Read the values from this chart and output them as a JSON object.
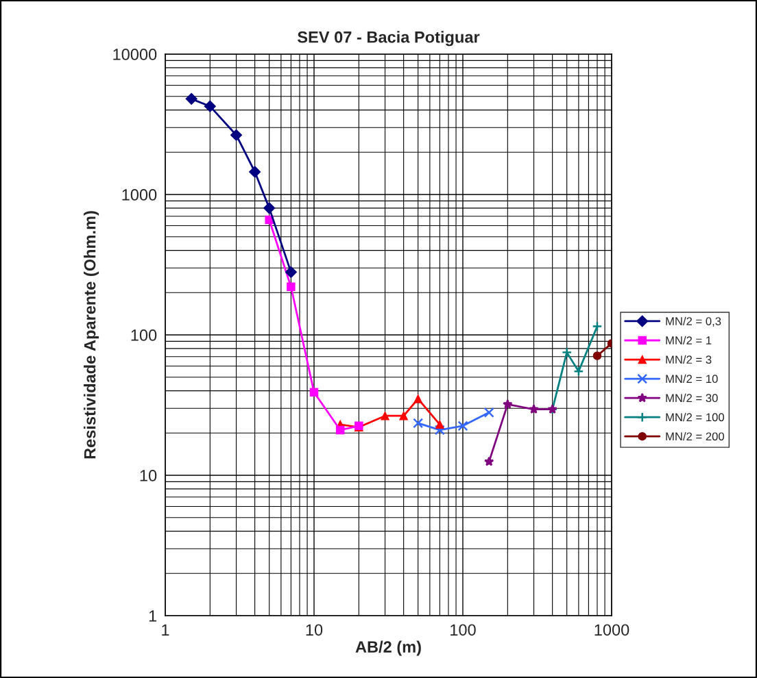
{
  "chart_data": {
    "type": "line",
    "title": "SEV 07 - Bacia Potiguar",
    "xlabel": "AB/2 (m)",
    "ylabel": "Resistividade Aparente (Ohm.m)",
    "log": "xy",
    "xlim": [
      1,
      1000
    ],
    "xticks": [
      1,
      10,
      100,
      1000
    ],
    "ylim": [
      1,
      10000
    ],
    "yticks": [
      1,
      10,
      100,
      1000,
      10000
    ],
    "grid": true,
    "legend": "right",
    "series": [
      {
        "name": "MN/2 = 0,3",
        "color": "#000080",
        "marker": "diamond",
        "x": [
          1.5,
          2,
          3,
          4,
          5,
          7
        ],
        "values": [
          4800,
          4250,
          2650,
          1450,
          800,
          280
        ]
      },
      {
        "name": "MN/2 = 1",
        "color": "#ff00ff",
        "marker": "square",
        "x": [
          5,
          7,
          10,
          15,
          20
        ],
        "values": [
          660,
          220,
          39,
          21,
          22.5
        ]
      },
      {
        "name": "MN/2 = 3",
        "color": "#ff0000",
        "marker": "triangle",
        "x": [
          15,
          20,
          30,
          40,
          50,
          70
        ],
        "values": [
          23,
          22,
          26.5,
          26.5,
          35,
          23
        ]
      },
      {
        "name": "MN/2 = 10",
        "color": "#3366ff",
        "marker": "cross",
        "x": [
          50,
          70,
          100,
          150
        ],
        "values": [
          23.5,
          21,
          22.5,
          28
        ]
      },
      {
        "name": "MN/2 = 30",
        "color": "#800080",
        "marker": "star",
        "x": [
          150,
          200,
          300,
          400
        ],
        "values": [
          12.5,
          32,
          29.5,
          29.5
        ]
      },
      {
        "name": "MN/2 = 100",
        "color": "#008080",
        "marker": "plus",
        "x": [
          400,
          500,
          600,
          800
        ],
        "values": [
          29.5,
          75,
          55,
          115
        ]
      },
      {
        "name": "MN/2 = 200",
        "color": "#800000",
        "marker": "circle",
        "x": [
          800,
          1000
        ],
        "values": [
          71,
          87
        ]
      }
    ]
  }
}
